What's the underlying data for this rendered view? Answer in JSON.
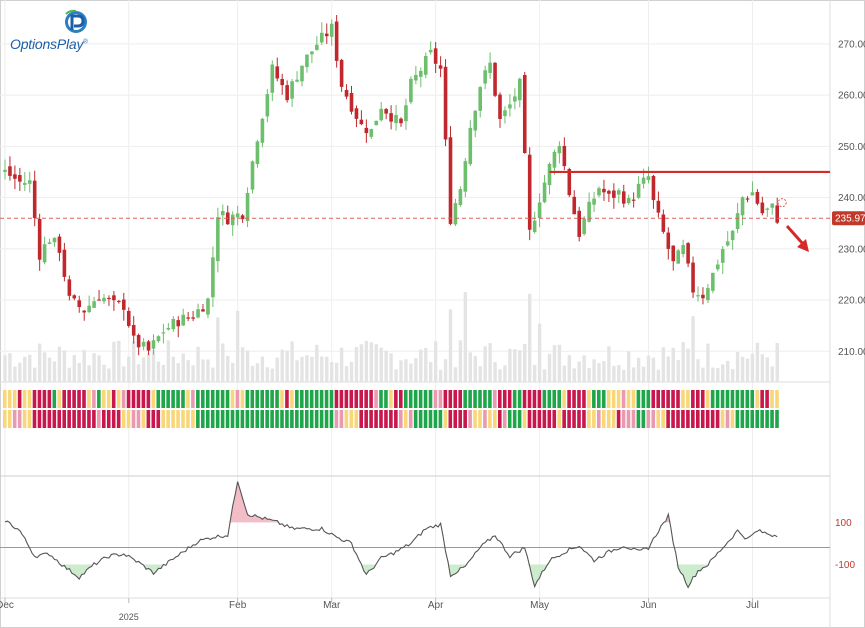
{
  "brand": {
    "name": "OptionsPlay",
    "mark": "®"
  },
  "colors": {
    "up": "#6dbf6d",
    "down": "#c0282d",
    "grid": "#eeeeee",
    "resistance": "#d42a2a",
    "current_line": "#e06060",
    "price_badge": "#c0392b",
    "volume": "#e4e4e4",
    "osc_line": "#555555",
    "osc_pos_fill": "#f2b6c2",
    "osc_neg_fill": "#c8eac8",
    "strip_green": "#1fa64a",
    "strip_yellow": "#f8d77a",
    "strip_red": "#c8174d",
    "strip_pink": "#e99ab0"
  },
  "x_axis": {
    "ticks": [
      {
        "label": "Dec",
        "day": 0
      },
      {
        "label": "2025",
        "day": 25,
        "sub": true
      },
      {
        "label": "Feb",
        "day": 47
      },
      {
        "label": "Mar",
        "day": 66
      },
      {
        "label": "Apr",
        "day": 87
      },
      {
        "label": "May",
        "day": 108
      },
      {
        "label": "Jun",
        "day": 130
      },
      {
        "label": "Jul",
        "day": 151
      }
    ]
  },
  "chart_data": {
    "type": "candlestick",
    "title": "",
    "y_axis": {
      "ticks": [
        210,
        220,
        230,
        240,
        250,
        260,
        270
      ],
      "labels": [
        "210.00",
        "220.00",
        "230.00",
        "240.00",
        "250.00",
        "260.00",
        "270.00"
      ],
      "range": [
        204,
        277
      ]
    },
    "current_price": 235.97,
    "current_price_label": "235.97",
    "resistance_level": 245.0,
    "anchors": [
      {
        "day": 0,
        "close": 245
      },
      {
        "day": 3,
        "close": 243
      },
      {
        "day": 5,
        "close": 243
      },
      {
        "day": 7,
        "close": 229
      },
      {
        "day": 9,
        "close": 232
      },
      {
        "day": 11,
        "close": 230
      },
      {
        "day": 13,
        "close": 220
      },
      {
        "day": 16,
        "close": 218
      },
      {
        "day": 19,
        "close": 221
      },
      {
        "day": 22,
        "close": 219
      },
      {
        "day": 24,
        "close": 219
      },
      {
        "day": 26,
        "close": 212
      },
      {
        "day": 29,
        "close": 210
      },
      {
        "day": 32,
        "close": 214
      },
      {
        "day": 35,
        "close": 216
      },
      {
        "day": 38,
        "close": 217
      },
      {
        "day": 41,
        "close": 220
      },
      {
        "day": 43,
        "close": 237
      },
      {
        "day": 45,
        "close": 236
      },
      {
        "day": 48,
        "close": 237
      },
      {
        "day": 51,
        "close": 252
      },
      {
        "day": 54,
        "close": 265
      },
      {
        "day": 57,
        "close": 260
      },
      {
        "day": 60,
        "close": 266
      },
      {
        "day": 63,
        "close": 270
      },
      {
        "day": 66,
        "close": 273
      },
      {
        "day": 68,
        "close": 262
      },
      {
        "day": 70,
        "close": 258
      },
      {
        "day": 72,
        "close": 254
      },
      {
        "day": 74,
        "close": 253
      },
      {
        "day": 76,
        "close": 258
      },
      {
        "day": 78,
        "close": 256
      },
      {
        "day": 80,
        "close": 254
      },
      {
        "day": 82,
        "close": 262
      },
      {
        "day": 84,
        "close": 265
      },
      {
        "day": 86,
        "close": 268
      },
      {
        "day": 88,
        "close": 265
      },
      {
        "day": 90,
        "close": 236
      },
      {
        "day": 92,
        "close": 242
      },
      {
        "day": 94,
        "close": 254
      },
      {
        "day": 96,
        "close": 262
      },
      {
        "day": 98,
        "close": 266
      },
      {
        "day": 100,
        "close": 255
      },
      {
        "day": 102,
        "close": 258
      },
      {
        "day": 104,
        "close": 262
      },
      {
        "day": 106,
        "close": 233
      },
      {
        "day": 108,
        "close": 240
      },
      {
        "day": 110,
        "close": 246
      },
      {
        "day": 112,
        "close": 251
      },
      {
        "day": 114,
        "close": 241
      },
      {
        "day": 116,
        "close": 233
      },
      {
        "day": 118,
        "close": 238
      },
      {
        "day": 120,
        "close": 242
      },
      {
        "day": 122,
        "close": 240
      },
      {
        "day": 124,
        "close": 241
      },
      {
        "day": 126,
        "close": 239
      },
      {
        "day": 128,
        "close": 242
      },
      {
        "day": 130,
        "close": 244
      },
      {
        "day": 131,
        "close": 239
      },
      {
        "day": 133,
        "close": 233
      },
      {
        "day": 135,
        "close": 227
      },
      {
        "day": 137,
        "close": 230
      },
      {
        "day": 139,
        "close": 222
      },
      {
        "day": 141,
        "close": 221
      },
      {
        "day": 143,
        "close": 225
      },
      {
        "day": 145,
        "close": 230
      },
      {
        "day": 147,
        "close": 233
      },
      {
        "day": 149,
        "close": 240
      },
      {
        "day": 151,
        "close": 241
      },
      {
        "day": 153,
        "close": 237
      },
      {
        "day": 155,
        "close": 238
      },
      {
        "day": 156,
        "close": 236
      }
    ],
    "oscillator": {
      "ticks": [
        100,
        -100
      ],
      "labels": [
        "100",
        "-100"
      ],
      "range": [
        -230,
        310
      ],
      "anchors": [
        {
          "day": 0,
          "v": 110
        },
        {
          "day": 3,
          "v": 60
        },
        {
          "day": 6,
          "v": -60
        },
        {
          "day": 9,
          "v": -50
        },
        {
          "day": 12,
          "v": -110
        },
        {
          "day": 15,
          "v": -160
        },
        {
          "day": 18,
          "v": -100
        },
        {
          "day": 21,
          "v": -60
        },
        {
          "day": 24,
          "v": -50
        },
        {
          "day": 27,
          "v": -90
        },
        {
          "day": 30,
          "v": -140
        },
        {
          "day": 33,
          "v": -90
        },
        {
          "day": 36,
          "v": -40
        },
        {
          "day": 39,
          "v": 10
        },
        {
          "day": 42,
          "v": 30
        },
        {
          "day": 45,
          "v": 40
        },
        {
          "day": 47,
          "v": 300
        },
        {
          "day": 49,
          "v": 140
        },
        {
          "day": 52,
          "v": 120
        },
        {
          "day": 55,
          "v": 100
        },
        {
          "day": 58,
          "v": 70
        },
        {
          "day": 61,
          "v": 70
        },
        {
          "day": 64,
          "v": 70
        },
        {
          "day": 67,
          "v": 30
        },
        {
          "day": 70,
          "v": 0
        },
        {
          "day": 73,
          "v": -150
        },
        {
          "day": 76,
          "v": -70
        },
        {
          "day": 79,
          "v": -40
        },
        {
          "day": 82,
          "v": 0
        },
        {
          "day": 85,
          "v": 70
        },
        {
          "day": 88,
          "v": 90
        },
        {
          "day": 90,
          "v": -150
        },
        {
          "day": 93,
          "v": -110
        },
        {
          "day": 96,
          "v": -20
        },
        {
          "day": 99,
          "v": 40
        },
        {
          "day": 102,
          "v": -60
        },
        {
          "day": 105,
          "v": -20
        },
        {
          "day": 107,
          "v": -200
        },
        {
          "day": 110,
          "v": -80
        },
        {
          "day": 113,
          "v": -40
        },
        {
          "day": 116,
          "v": -10
        },
        {
          "day": 119,
          "v": -80
        },
        {
          "day": 122,
          "v": -40
        },
        {
          "day": 125,
          "v": -10
        },
        {
          "day": 128,
          "v": -40
        },
        {
          "day": 130,
          "v": -20
        },
        {
          "day": 132,
          "v": 60
        },
        {
          "day": 134,
          "v": 130
        },
        {
          "day": 136,
          "v": -110
        },
        {
          "day": 138,
          "v": -200
        },
        {
          "day": 140,
          "v": -130
        },
        {
          "day": 142,
          "v": -100
        },
        {
          "day": 145,
          "v": -20
        },
        {
          "day": 148,
          "v": 60
        },
        {
          "day": 150,
          "v": 20
        },
        {
          "day": 152,
          "v": 60
        },
        {
          "day": 155,
          "v": 40
        }
      ]
    }
  }
}
